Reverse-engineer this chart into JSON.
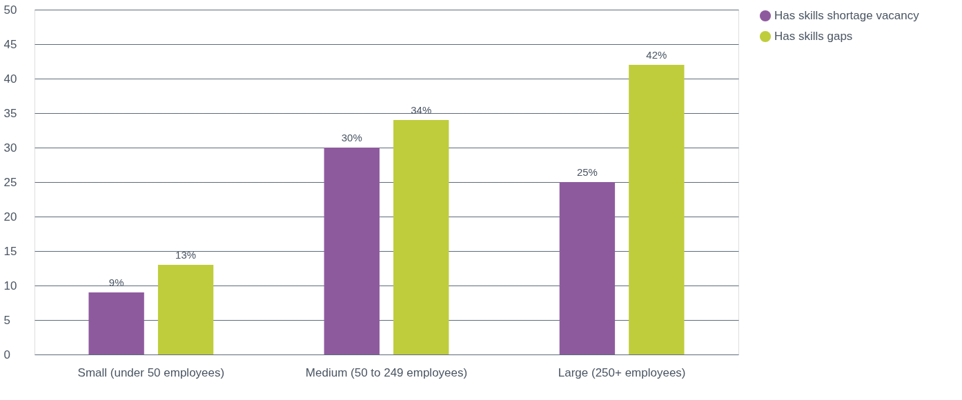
{
  "chart_data": {
    "type": "bar",
    "categories": [
      "Small (under 50 employees)",
      "Medium (50 to 249 employees)",
      "Large (250+ employees)"
    ],
    "series": [
      {
        "name": "Has skills shortage vacancy",
        "color": "#8e5a9e",
        "values": [
          9,
          30,
          25
        ],
        "value_labels": [
          "9%",
          "30%",
          "25%"
        ]
      },
      {
        "name": "Has skills gaps",
        "color": "#bfcd3c",
        "values": [
          13,
          34,
          42
        ],
        "value_labels": [
          "13%",
          "34%",
          "42%"
        ]
      }
    ],
    "ylim": [
      0,
      50
    ],
    "yticks": [
      0,
      5,
      10,
      15,
      20,
      25,
      30,
      35,
      40,
      45,
      50
    ],
    "grid": "y",
    "legend": "top right"
  }
}
